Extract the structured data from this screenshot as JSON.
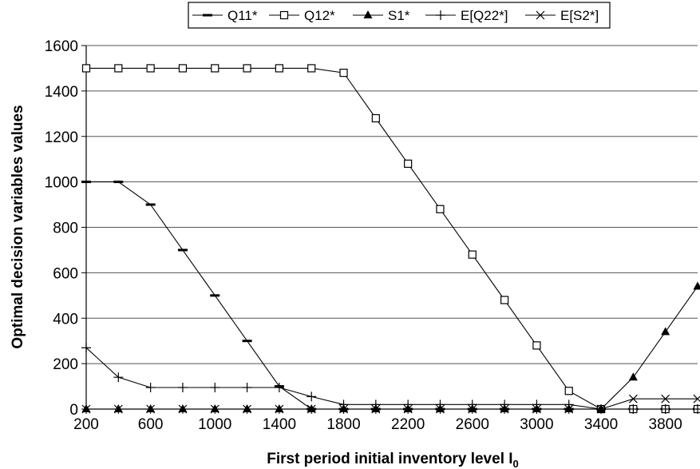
{
  "chart_data": {
    "type": "line",
    "title": "",
    "xlabel": "First period initial inventory level I",
    "xlabel_subscript": "0",
    "ylabel": "Optimal decision variables values",
    "xlim": [
      200,
      4000
    ],
    "ylim": [
      0,
      1600
    ],
    "x_ticks": [
      200,
      600,
      1000,
      1400,
      1800,
      2200,
      2600,
      3000,
      3400,
      3800
    ],
    "y_ticks": [
      0,
      200,
      400,
      600,
      800,
      1000,
      1200,
      1400,
      1600
    ],
    "grid": "horizontal",
    "legend_position": "top",
    "x": [
      200,
      400,
      600,
      800,
      1000,
      1200,
      1400,
      1600,
      1800,
      2000,
      2200,
      2400,
      2600,
      2800,
      3000,
      3200,
      3400,
      3600,
      3800,
      4000
    ],
    "series": [
      {
        "name": "Q11*",
        "marker": "dash",
        "values": [
          1000,
          1000,
          900,
          700,
          500,
          300,
          100,
          0,
          0,
          0,
          0,
          0,
          0,
          0,
          0,
          0,
          0,
          0,
          0,
          0
        ]
      },
      {
        "name": "Q12*",
        "marker": "square",
        "values": [
          1500,
          1500,
          1500,
          1500,
          1500,
          1500,
          1500,
          1500,
          1480,
          1280,
          1080,
          880,
          680,
          480,
          280,
          80,
          0,
          0,
          0,
          0
        ]
      },
      {
        "name": "S1*",
        "marker": "triangle",
        "values": [
          0,
          0,
          0,
          0,
          0,
          0,
          0,
          0,
          0,
          0,
          0,
          0,
          0,
          0,
          0,
          0,
          0,
          140,
          340,
          540
        ]
      },
      {
        "name": "E[Q22*]",
        "marker": "plus",
        "values": [
          270,
          140,
          95,
          95,
          95,
          95,
          95,
          55,
          20,
          20,
          20,
          20,
          20,
          20,
          20,
          20,
          0,
          0,
          0,
          0
        ]
      },
      {
        "name": "E[S2*]",
        "marker": "x",
        "values": [
          0,
          0,
          0,
          0,
          0,
          0,
          0,
          0,
          0,
          0,
          0,
          0,
          0,
          0,
          0,
          0,
          0,
          45,
          45,
          45
        ]
      }
    ]
  }
}
